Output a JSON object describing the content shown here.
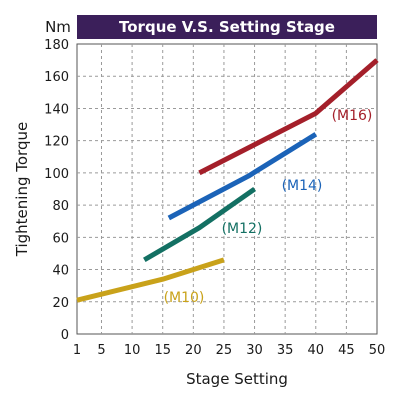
{
  "chart_data": {
    "type": "line",
    "title": "Torque V.S. Setting Stage",
    "y_unit": "Nm",
    "xlabel": "Stage Setting",
    "ylabel": "Tightening Torque",
    "x_ticks": [
      1,
      5,
      10,
      15,
      20,
      25,
      30,
      35,
      40,
      45,
      50
    ],
    "y_ticks": [
      0,
      20,
      40,
      60,
      80,
      100,
      120,
      140,
      160,
      180
    ],
    "xlim": [
      1,
      50
    ],
    "ylim": [
      0,
      180
    ],
    "grid": true,
    "title_bar_color": "#3b1f5a",
    "series": [
      {
        "name": "(M10)",
        "color": "#c9a21a",
        "points": [
          [
            1,
            21
          ],
          [
            15,
            34
          ],
          [
            25,
            46
          ]
        ]
      },
      {
        "name": "(M12)",
        "color": "#137063",
        "points": [
          [
            12,
            46
          ],
          [
            21,
            66
          ],
          [
            30,
            90
          ]
        ]
      },
      {
        "name": "(M14)",
        "color": "#1b63b8",
        "points": [
          [
            16,
            72
          ],
          [
            29,
            98
          ],
          [
            40,
            124
          ]
        ]
      },
      {
        "name": "(M16)",
        "color": "#a41f2a",
        "points": [
          [
            21,
            100
          ],
          [
            40,
            137
          ],
          [
            50,
            170
          ]
        ]
      }
    ]
  }
}
